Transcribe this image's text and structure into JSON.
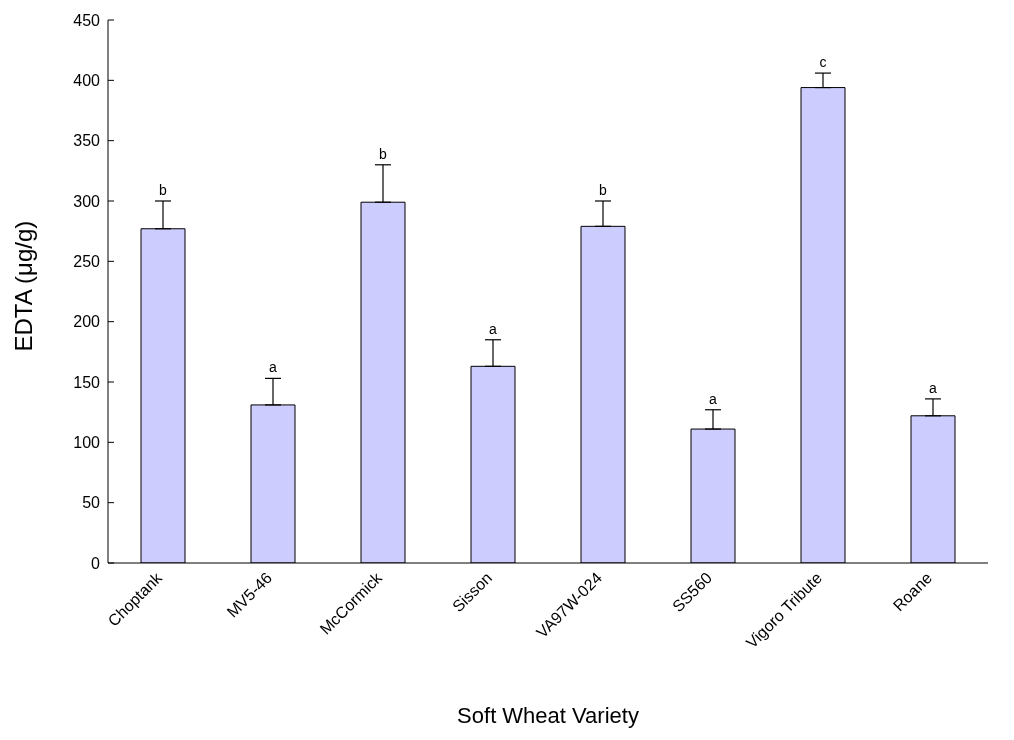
{
  "chart_data": {
    "type": "bar",
    "xlabel": "Soft Wheat Variety",
    "ylabel": "EDTA (μg/g)",
    "categories": [
      "Choptank",
      "MV5-46",
      "McCormick",
      "Sisson",
      "VA97W-024",
      "SS560",
      "Vigoro Tribute",
      "Roane"
    ],
    "values": [
      277,
      131,
      299,
      163,
      279,
      111,
      394,
      122
    ],
    "errors": [
      [
        277,
        300
      ],
      [
        131,
        153
      ],
      [
        299,
        330
      ],
      [
        163,
        185
      ],
      [
        279,
        300
      ],
      [
        111,
        127
      ],
      [
        394,
        406
      ],
      [
        122,
        136
      ]
    ],
    "color": "#ccccff",
    "ylim": [
      0,
      450
    ],
    "yticks": [
      0,
      50,
      100,
      150,
      200,
      250,
      300,
      350,
      400,
      450
    ],
    "grid": false,
    "legend": false,
    "annotations": [
      "b",
      "a",
      "b",
      "a",
      "b",
      "a",
      "c",
      "a"
    ]
  }
}
